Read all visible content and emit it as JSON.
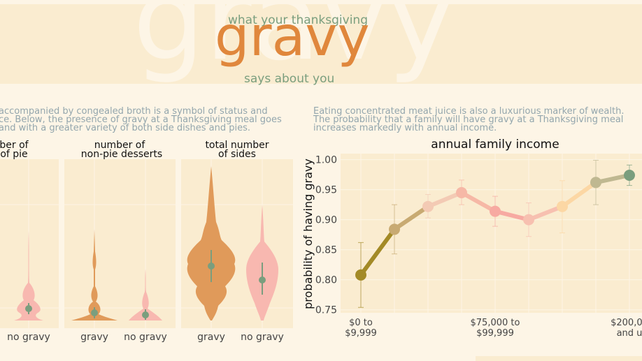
{
  "header": {
    "watermark": "gravy",
    "pre_title": "what your thanksgiving",
    "title": "gravy",
    "post_title": "says about you"
  },
  "left_paragraph": {
    "lines": [
      "accompanied by congealed broth is a symbol of status and",
      "ce. Below, the presence of gravy at a Thanksgiving meal goes",
      "and with a greater variety of both side dishes and pies."
    ]
  },
  "right_paragraph": {
    "lines": [
      "Eating concentrated meat juice is also a luxurious marker of wealth.",
      "The probability that a family will have gravy at a Thanksgiving meal",
      "increases markedly with annual income."
    ]
  },
  "colors": {
    "panel_bg": "#faecd0",
    "gravy_violin": "#e09a5a",
    "no_gravy_violin": "#f8b8b0",
    "mean_point": "#7a9e7e",
    "title_orange": "#e0873c",
    "subtitle_green": "#7a9e7e"
  },
  "chart_data": [
    {
      "type": "violin",
      "title": "ber of of pie",
      "title_lines": [
        "ber of",
        "of pie"
      ],
      "categories": [
        "",
        "no gravy"
      ],
      "summary_means": [
        null,
        0.6
      ],
      "note": "panel cut off at left edge; only the no gravy violin is fully visible"
    },
    {
      "type": "violin",
      "title": "number of non-pie desserts",
      "title_lines": [
        "number of",
        "non-pie desserts"
      ],
      "categories": [
        "gravy",
        "no gravy"
      ],
      "summary_means": [
        0.35,
        0.25
      ]
    },
    {
      "type": "violin",
      "title": "total number of sides",
      "title_lines": [
        "total number",
        "of sides"
      ],
      "categories": [
        "gravy",
        "no gravy"
      ],
      "summary_means": [
        0.6,
        0.45
      ]
    },
    {
      "type": "line",
      "title": "annual family income",
      "ylabel": "probability of having gravy",
      "ylim": [
        0.745,
        1.01
      ],
      "yticks": [
        0.75,
        0.8,
        0.85,
        0.9,
        0.95,
        1.0
      ],
      "ytick_labels": [
        "0.75",
        "0.80",
        "0.85",
        "0.90",
        "0.95",
        "1.00"
      ],
      "xtick_labels": [
        {
          "index": 0,
          "lines": [
            "$0 to",
            "$9,999"
          ]
        },
        {
          "index": 4,
          "lines": [
            "$75,000 to",
            "$99,999"
          ]
        },
        {
          "index": 8,
          "lines": [
            "$200,00",
            "and u"
          ]
        }
      ],
      "points": [
        {
          "value": 0.808,
          "low": 0.754,
          "high": 0.862,
          "color": "#a38a26"
        },
        {
          "value": 0.884,
          "low": 0.843,
          "high": 0.925,
          "color": "#c8aa72"
        },
        {
          "value": 0.922,
          "low": 0.903,
          "high": 0.942,
          "color": "#f3cab4"
        },
        {
          "value": 0.945,
          "low": 0.925,
          "high": 0.966,
          "color": "#f6b8a6"
        },
        {
          "value": 0.914,
          "low": 0.889,
          "high": 0.939,
          "color": "#f7aaa2"
        },
        {
          "value": 0.9,
          "low": 0.872,
          "high": 0.928,
          "color": "#f7c0b0"
        },
        {
          "value": 0.922,
          "low": 0.878,
          "high": 0.965,
          "color": "#fcd7a4"
        },
        {
          "value": 0.962,
          "low": 0.925,
          "high": 0.999,
          "color": "#bfb891"
        },
        {
          "value": 0.974,
          "low": 0.957,
          "high": 0.991,
          "color": "#7a9e7e"
        }
      ]
    }
  ]
}
